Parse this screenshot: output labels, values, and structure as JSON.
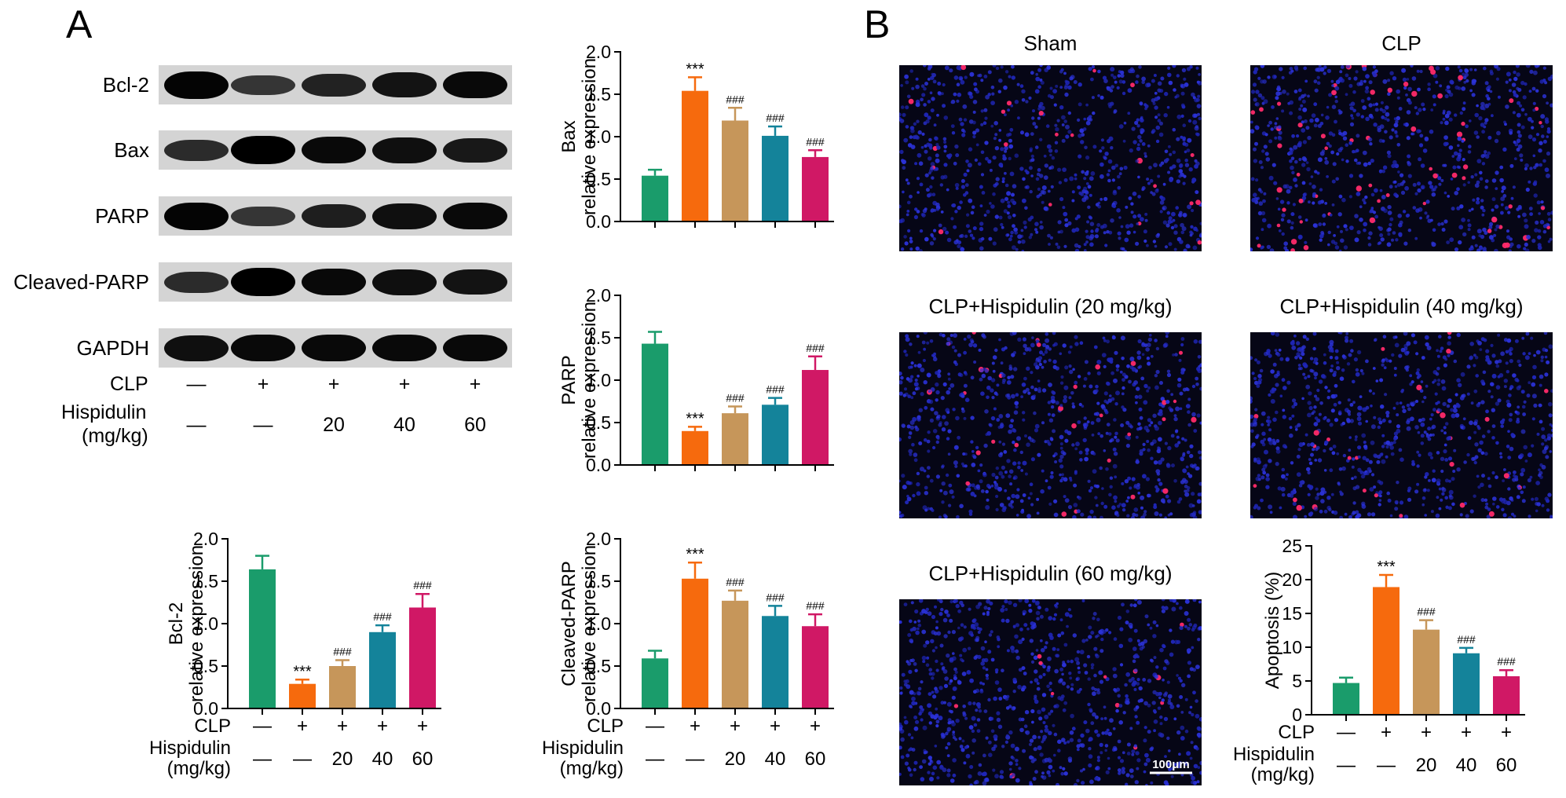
{
  "panels": {
    "a": "A",
    "b": "B"
  },
  "colors": {
    "sham": "#1a9c6b",
    "clp": "#f66a0d",
    "h20": "#c6965a",
    "h40": "#14839a",
    "h60": "#d01865"
  },
  "western_blot": {
    "proteins": [
      "Bcl-2",
      "Bax",
      "PARP",
      "Cleaved-PARP",
      "GAPDH"
    ],
    "conditions": {
      "clp_label": "CLP",
      "clp_values": [
        "—",
        "+",
        "+",
        "+",
        "+"
      ],
      "hisp_label_line1": "Hispidulin",
      "hisp_label_line2": "(mg/kg)",
      "hisp_values": [
        "—",
        "—",
        "20",
        "40",
        "60"
      ]
    }
  },
  "images": {
    "titles": [
      "Sham",
      "CLP",
      "CLP+Hispidulin (20 mg/kg)",
      "CLP+Hispidulin (40 mg/kg)",
      "CLP+Hispidulin (60 mg/kg)"
    ],
    "scalebar": "100μm",
    "apoptotic_fraction": [
      0.05,
      0.19,
      0.125,
      0.09,
      0.055
    ]
  },
  "chart_conditions": {
    "clp_label": "CLP",
    "hisp_line1": "Hispidulin",
    "hisp_line2": "(mg/kg)",
    "clp_values": [
      "—",
      "+",
      "+",
      "+",
      "+"
    ],
    "hisp_values": [
      "—",
      "—",
      "20",
      "40",
      "60"
    ]
  },
  "chart_data": [
    {
      "id": "bax",
      "type": "bar",
      "categories": [
        "Sham",
        "CLP",
        "CLP+Hispidulin 20",
        "CLP+Hispidulin 40",
        "CLP+Hispidulin 60"
      ],
      "values": [
        0.54,
        1.54,
        1.19,
        1.01,
        0.76
      ],
      "errors": [
        0.07,
        0.16,
        0.15,
        0.11,
        0.08
      ],
      "annotations": [
        "",
        "***",
        "###",
        "###",
        "###"
      ],
      "ylabel_line1": "Bax",
      "ylabel_line2": "relative expression",
      "ylim": [
        0,
        2.0
      ],
      "yticks": [
        "0.0",
        "0.5",
        "1.0",
        "1.5",
        "2.0"
      ],
      "tick_values": [
        0,
        0.5,
        1.0,
        1.5,
        2.0
      ],
      "show_conditions": false
    },
    {
      "id": "parp",
      "type": "bar",
      "categories": [
        "Sham",
        "CLP",
        "CLP+Hispidulin 20",
        "CLP+Hispidulin 40",
        "CLP+Hispidulin 60"
      ],
      "values": [
        1.43,
        0.4,
        0.61,
        0.71,
        1.12
      ],
      "errors": [
        0.14,
        0.05,
        0.08,
        0.08,
        0.16
      ],
      "annotations": [
        "",
        "***",
        "###",
        "###",
        "###"
      ],
      "ylabel_line1": "PARP",
      "ylabel_line2": "relative expression",
      "ylim": [
        0,
        2.0
      ],
      "yticks": [
        "0.0",
        "0.5",
        "1.0",
        "1.5",
        "2.0"
      ],
      "tick_values": [
        0,
        0.5,
        1.0,
        1.5,
        2.0
      ],
      "show_conditions": false
    },
    {
      "id": "bcl2",
      "type": "bar",
      "categories": [
        "Sham",
        "CLP",
        "CLP+Hispidulin 20",
        "CLP+Hispidulin 40",
        "CLP+Hispidulin 60"
      ],
      "values": [
        1.64,
        0.29,
        0.5,
        0.9,
        1.19
      ],
      "errors": [
        0.16,
        0.05,
        0.07,
        0.08,
        0.16
      ],
      "annotations": [
        "",
        "***",
        "###",
        "###",
        "###"
      ],
      "ylabel_line1": "Bcl-2",
      "ylabel_line2": "relative expression",
      "ylim": [
        0,
        2.0
      ],
      "yticks": [
        "0.0",
        "0.5",
        "1.0",
        "1.5",
        "2.0"
      ],
      "tick_values": [
        0,
        0.5,
        1.0,
        1.5,
        2.0
      ],
      "show_conditions": true
    },
    {
      "id": "cleaved_parp",
      "type": "bar",
      "categories": [
        "Sham",
        "CLP",
        "CLP+Hispidulin 20",
        "CLP+Hispidulin 40",
        "CLP+Hispidulin 60"
      ],
      "values": [
        0.59,
        1.53,
        1.27,
        1.09,
        0.97
      ],
      "errors": [
        0.09,
        0.19,
        0.12,
        0.12,
        0.14
      ],
      "annotations": [
        "",
        "***",
        "###",
        "###",
        "###"
      ],
      "ylabel_line1": "Cleaved-PARP",
      "ylabel_line2": "relative expression",
      "ylim": [
        0,
        2.0
      ],
      "yticks": [
        "0.0",
        "0.5",
        "1.0",
        "1.5",
        "2.0"
      ],
      "tick_values": [
        0,
        0.5,
        1.0,
        1.5,
        2.0
      ],
      "show_conditions": true
    },
    {
      "id": "apoptosis",
      "type": "bar",
      "categories": [
        "Sham",
        "CLP",
        "CLP+Hispidulin 20",
        "CLP+Hispidulin 40",
        "CLP+Hispidulin 60"
      ],
      "values": [
        4.7,
        18.9,
        12.6,
        9.1,
        5.7
      ],
      "errors": [
        0.8,
        1.8,
        1.4,
        0.8,
        0.9
      ],
      "annotations": [
        "",
        "***",
        "###",
        "###",
        "###"
      ],
      "ylabel_line1": "Apoptosis (%)",
      "ylabel_line2": "",
      "ylim": [
        0,
        25
      ],
      "yticks": [
        "0",
        "5",
        "10",
        "15",
        "20",
        "25"
      ],
      "tick_values": [
        0,
        5,
        10,
        15,
        20,
        25
      ],
      "show_conditions": true
    }
  ]
}
